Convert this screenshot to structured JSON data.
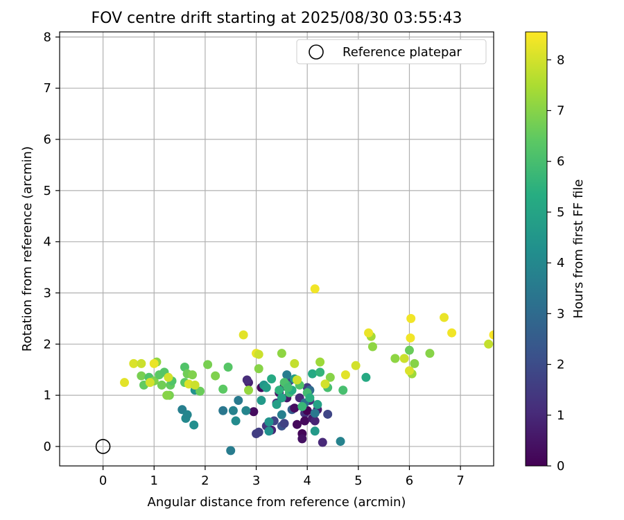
{
  "chart_data": {
    "type": "scatter",
    "title": "FOV centre drift starting at 2025/08/30 03:55:43",
    "xlabel": "Angular distance from reference (arcmin)",
    "ylabel": "Rotation from reference (arcmin)",
    "colorbar_label": "Hours from first FF file",
    "xlim": [
      -0.85,
      7.65
    ],
    "ylim": [
      -0.38,
      8.1
    ],
    "xticks": [
      0,
      1,
      2,
      3,
      4,
      5,
      6,
      7
    ],
    "yticks": [
      0,
      1,
      2,
      3,
      4,
      5,
      6,
      7,
      8
    ],
    "colorbar_range": [
      0,
      8.55
    ],
    "colorbar_ticks": [
      0,
      1,
      2,
      3,
      4,
      5,
      6,
      7,
      8
    ],
    "colormap": "viridis",
    "grid": true,
    "legend": {
      "position": "top-right",
      "entries": [
        {
          "label": "Reference platepar",
          "marker": "hollow-circle"
        }
      ]
    },
    "reference": {
      "x": 0,
      "y": 0
    },
    "points": [
      {
        "x": 2.85,
        "y": 1.25,
        "c": 0.8
      },
      {
        "x": 2.95,
        "y": 0.68,
        "c": 0.3
      },
      {
        "x": 3.05,
        "y": 0.28,
        "c": 1.6
      },
      {
        "x": 3.1,
        "y": 1.15,
        "c": 0.2
      },
      {
        "x": 3.2,
        "y": 0.4,
        "c": 1.4
      },
      {
        "x": 3.3,
        "y": 0.32,
        "c": 0.9
      },
      {
        "x": 3.35,
        "y": 0.5,
        "c": 1.8
      },
      {
        "x": 3.4,
        "y": 0.85,
        "c": 1.2
      },
      {
        "x": 3.45,
        "y": 1.05,
        "c": 0.5
      },
      {
        "x": 3.5,
        "y": 0.4,
        "c": 2.2
      },
      {
        "x": 3.55,
        "y": 1.18,
        "c": 0.1
      },
      {
        "x": 3.6,
        "y": 0.95,
        "c": 0.6
      },
      {
        "x": 3.65,
        "y": 1.28,
        "c": 1.7
      },
      {
        "x": 3.7,
        "y": 0.72,
        "c": 2.5
      },
      {
        "x": 3.75,
        "y": 0.75,
        "c": 0.3
      },
      {
        "x": 3.8,
        "y": 0.43,
        "c": 0.2
      },
      {
        "x": 3.85,
        "y": 0.95,
        "c": 1.0
      },
      {
        "x": 3.9,
        "y": 0.25,
        "c": 0.1
      },
      {
        "x": 3.9,
        "y": 0.15,
        "c": 0.4
      },
      {
        "x": 3.95,
        "y": 0.65,
        "c": 1.3
      },
      {
        "x": 3.95,
        "y": 0.5,
        "c": 0.2
      },
      {
        "x": 4.0,
        "y": 0.7,
        "c": 0.0
      },
      {
        "x": 4.0,
        "y": 1.15,
        "c": 1.5
      },
      {
        "x": 4.05,
        "y": 0.9,
        "c": 1.1
      },
      {
        "x": 4.1,
        "y": 0.55,
        "c": 0.6
      },
      {
        "x": 4.15,
        "y": 0.5,
        "c": 0.9
      },
      {
        "x": 4.2,
        "y": 0.72,
        "c": 0.7
      },
      {
        "x": 4.3,
        "y": 0.08,
        "c": 1.0
      },
      {
        "x": 4.4,
        "y": 0.63,
        "c": 1.8
      },
      {
        "x": 3.0,
        "y": 0.25,
        "c": 1.6
      },
      {
        "x": 2.82,
        "y": 1.3,
        "c": 1.1
      },
      {
        "x": 3.55,
        "y": 0.45,
        "c": 1.7
      },
      {
        "x": 1.55,
        "y": 0.72,
        "c": 3.7
      },
      {
        "x": 1.62,
        "y": 0.55,
        "c": 4.0
      },
      {
        "x": 1.65,
        "y": 0.62,
        "c": 3.9
      },
      {
        "x": 1.78,
        "y": 0.42,
        "c": 4.2
      },
      {
        "x": 1.8,
        "y": 1.1,
        "c": 4.4
      },
      {
        "x": 2.35,
        "y": 0.7,
        "c": 3.4
      },
      {
        "x": 2.5,
        "y": -0.08,
        "c": 3.6
      },
      {
        "x": 2.55,
        "y": 0.7,
        "c": 3.8
      },
      {
        "x": 2.6,
        "y": 0.5,
        "c": 4.1
      },
      {
        "x": 2.65,
        "y": 0.9,
        "c": 3.5
      },
      {
        "x": 2.8,
        "y": 0.7,
        "c": 3.9
      },
      {
        "x": 3.1,
        "y": 0.9,
        "c": 4.6
      },
      {
        "x": 3.25,
        "y": 0.48,
        "c": 4.4
      },
      {
        "x": 3.25,
        "y": 0.3,
        "c": 4.3
      },
      {
        "x": 3.4,
        "y": 0.82,
        "c": 4.8
      },
      {
        "x": 3.5,
        "y": 0.62,
        "c": 3.7
      },
      {
        "x": 3.6,
        "y": 1.4,
        "c": 3.6
      },
      {
        "x": 4.15,
        "y": 0.3,
        "c": 4.6
      },
      {
        "x": 4.2,
        "y": 0.82,
        "c": 4.9
      },
      {
        "x": 4.65,
        "y": 0.1,
        "c": 3.8
      },
      {
        "x": 3.95,
        "y": 0.85,
        "c": 3.2
      },
      {
        "x": 4.05,
        "y": 1.1,
        "c": 3.0
      },
      {
        "x": 4.15,
        "y": 0.65,
        "c": 3.4
      },
      {
        "x": 3.75,
        "y": 1.32,
        "c": 4.7
      },
      {
        "x": 3.15,
        "y": 1.2,
        "c": 4.5
      },
      {
        "x": 3.3,
        "y": 1.32,
        "c": 5.2
      },
      {
        "x": 3.45,
        "y": 1.1,
        "c": 5.5
      },
      {
        "x": 3.5,
        "y": 0.95,
        "c": 4.9
      },
      {
        "x": 3.6,
        "y": 1.2,
        "c": 5.6
      },
      {
        "x": 3.65,
        "y": 1.05,
        "c": 5.8
      },
      {
        "x": 3.7,
        "y": 1.1,
        "c": 5.3
      },
      {
        "x": 3.8,
        "y": 1.3,
        "c": 5.1
      },
      {
        "x": 3.9,
        "y": 0.78,
        "c": 5.7
      },
      {
        "x": 4.0,
        "y": 1.05,
        "c": 5.9
      },
      {
        "x": 4.05,
        "y": 0.95,
        "c": 5.4
      },
      {
        "x": 4.1,
        "y": 1.42,
        "c": 5.2
      },
      {
        "x": 4.25,
        "y": 1.45,
        "c": 5.6
      },
      {
        "x": 4.4,
        "y": 1.15,
        "c": 6.0
      },
      {
        "x": 4.7,
        "y": 1.1,
        "c": 6.0
      },
      {
        "x": 5.15,
        "y": 1.35,
        "c": 5.2
      },
      {
        "x": 3.2,
        "y": 1.15,
        "c": 4.8
      },
      {
        "x": 3.55,
        "y": 1.25,
        "c": 6.1
      },
      {
        "x": 3.62,
        "y": 1.15,
        "c": 5.9
      },
      {
        "x": 3.85,
        "y": 1.2,
        "c": 6.2
      },
      {
        "x": 0.75,
        "y": 1.38,
        "c": 6.8
      },
      {
        "x": 0.8,
        "y": 1.2,
        "c": 6.5
      },
      {
        "x": 0.9,
        "y": 1.35,
        "c": 6.2
      },
      {
        "x": 1.0,
        "y": 1.28,
        "c": 6.9
      },
      {
        "x": 1.05,
        "y": 1.65,
        "c": 7.1
      },
      {
        "x": 1.1,
        "y": 1.4,
        "c": 6.4
      },
      {
        "x": 1.15,
        "y": 1.2,
        "c": 6.7
      },
      {
        "x": 1.2,
        "y": 1.45,
        "c": 6.3
      },
      {
        "x": 1.3,
        "y": 1.0,
        "c": 6.8
      },
      {
        "x": 1.32,
        "y": 1.2,
        "c": 6.5
      },
      {
        "x": 1.35,
        "y": 1.28,
        "c": 6.2
      },
      {
        "x": 1.6,
        "y": 1.55,
        "c": 6.2
      },
      {
        "x": 1.6,
        "y": 1.25,
        "c": 6.4
      },
      {
        "x": 1.65,
        "y": 1.42,
        "c": 6.7
      },
      {
        "x": 1.75,
        "y": 1.4,
        "c": 6.9
      },
      {
        "x": 1.9,
        "y": 1.08,
        "c": 6.6
      },
      {
        "x": 2.05,
        "y": 1.6,
        "c": 6.8
      },
      {
        "x": 2.2,
        "y": 1.38,
        "c": 6.9
      },
      {
        "x": 2.35,
        "y": 1.12,
        "c": 6.4
      },
      {
        "x": 2.45,
        "y": 1.55,
        "c": 6.3
      },
      {
        "x": 2.85,
        "y": 1.1,
        "c": 7.2
      },
      {
        "x": 3.05,
        "y": 1.52,
        "c": 7.0
      },
      {
        "x": 3.5,
        "y": 1.82,
        "c": 7.1
      },
      {
        "x": 4.25,
        "y": 1.65,
        "c": 7.3
      },
      {
        "x": 4.45,
        "y": 1.35,
        "c": 7.0
      },
      {
        "x": 5.25,
        "y": 2.15,
        "c": 7.4
      },
      {
        "x": 5.28,
        "y": 1.95,
        "c": 7.1
      },
      {
        "x": 5.72,
        "y": 1.72,
        "c": 7.1
      },
      {
        "x": 6.0,
        "y": 1.88,
        "c": 6.6
      },
      {
        "x": 6.05,
        "y": 1.42,
        "c": 7.3
      },
      {
        "x": 6.1,
        "y": 1.62,
        "c": 7.0
      },
      {
        "x": 6.4,
        "y": 1.82,
        "c": 7.0
      },
      {
        "x": 1.25,
        "y": 1.0,
        "c": 7.0
      },
      {
        "x": 0.42,
        "y": 1.25,
        "c": 8.2
      },
      {
        "x": 0.6,
        "y": 1.62,
        "c": 8.1
      },
      {
        "x": 0.75,
        "y": 1.62,
        "c": 7.9
      },
      {
        "x": 0.92,
        "y": 1.25,
        "c": 8.0
      },
      {
        "x": 1.0,
        "y": 1.62,
        "c": 8.3
      },
      {
        "x": 1.28,
        "y": 1.35,
        "c": 8.0
      },
      {
        "x": 1.68,
        "y": 1.22,
        "c": 8.1
      },
      {
        "x": 1.8,
        "y": 1.2,
        "c": 7.9
      },
      {
        "x": 2.75,
        "y": 2.18,
        "c": 8.2
      },
      {
        "x": 3.0,
        "y": 1.82,
        "c": 8.3
      },
      {
        "x": 3.05,
        "y": 1.8,
        "c": 7.9
      },
      {
        "x": 3.75,
        "y": 1.62,
        "c": 7.8
      },
      {
        "x": 3.8,
        "y": 1.3,
        "c": 7.9
      },
      {
        "x": 4.15,
        "y": 3.08,
        "c": 8.4
      },
      {
        "x": 4.35,
        "y": 1.22,
        "c": 8.0
      },
      {
        "x": 4.75,
        "y": 1.4,
        "c": 8.2
      },
      {
        "x": 4.95,
        "y": 1.58,
        "c": 8.0
      },
      {
        "x": 5.2,
        "y": 2.22,
        "c": 8.3
      },
      {
        "x": 5.9,
        "y": 1.72,
        "c": 7.9
      },
      {
        "x": 6.0,
        "y": 1.48,
        "c": 8.1
      },
      {
        "x": 6.02,
        "y": 2.12,
        "c": 8.4
      },
      {
        "x": 6.03,
        "y": 2.5,
        "c": 8.4
      },
      {
        "x": 6.68,
        "y": 2.52,
        "c": 8.3
      },
      {
        "x": 6.83,
        "y": 2.22,
        "c": 8.4
      },
      {
        "x": 7.55,
        "y": 2.0,
        "c": 7.8
      },
      {
        "x": 7.65,
        "y": 2.18,
        "c": 8.5
      }
    ]
  }
}
